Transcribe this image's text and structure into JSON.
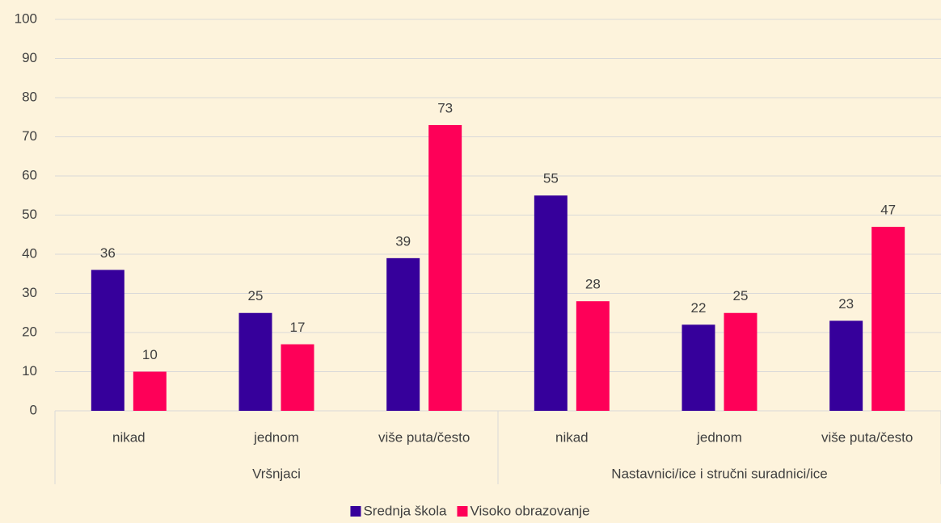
{
  "chart_data": {
    "type": "bar",
    "categories": [
      "nikad",
      "jednom",
      "više puta/često",
      "nikad",
      "jednom",
      "više puta/često"
    ],
    "category_groups": [
      "Vršnjaci",
      "Nastavnici/ice i stručni suradnici/ice"
    ],
    "series": [
      {
        "name": "Srednja škola",
        "color": "#36009b",
        "values": [
          36,
          25,
          39,
          55,
          22,
          23
        ]
      },
      {
        "name": "Visoko obrazovanje",
        "color": "#fe0058",
        "values": [
          10,
          17,
          73,
          28,
          25,
          47
        ]
      }
    ],
    "ylim": [
      0,
      100
    ],
    "yticks": [
      0,
      10,
      20,
      30,
      40,
      50,
      60,
      70,
      80,
      90,
      100
    ],
    "grid": true,
    "legend": "bottom"
  }
}
